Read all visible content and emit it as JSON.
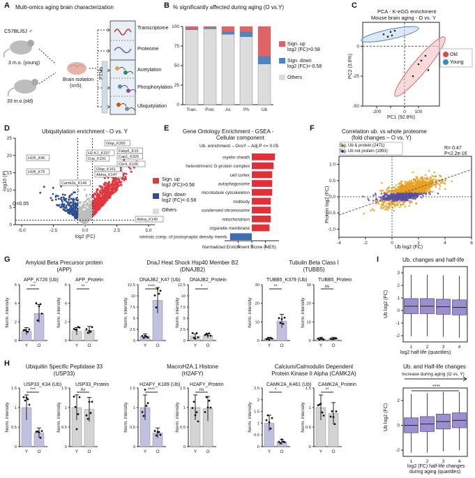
{
  "panels": {
    "A": {
      "label": "A",
      "title": "Multi-omics aging brain characterization",
      "mouse": "C57BL/6J ♂",
      "young": "3 m.o. (young)",
      "old": "33 m.o.(old)",
      "iso1": "Brain isolation",
      "iso2": "(n=5)",
      "ptms": "PTMs",
      "layers": [
        "Transcriptome",
        "Proteome",
        "Acetylation",
        "Phosphorylation",
        "Ubiquitylation"
      ]
    },
    "B": {
      "label": "B",
      "title": "% significantly affected during aging (O vs.Y)",
      "legend": [
        "Sign. up",
        "log2 (FC)>0.58",
        "Sign. down",
        "log2 (FC)<-0.58",
        "Others"
      ]
    },
    "C": {
      "label": "C",
      "title1": "PCA - K-eGG enrichment",
      "title2": "Mouse brain aging - O vs. Y",
      "legend": [
        "Old",
        "Young"
      ]
    },
    "D": {
      "label": "D",
      "title": "Ubiquitylation enrichment - O vs. Y",
      "ylabel": "-log10 (P)",
      "xlabel": "log2 (FC)",
      "qline": "Q=0.05",
      "legend": [
        "Sign. up",
        "log2 (FC)>0.58",
        "Sign. down",
        "log2 (FC)<-0.58",
        "Others"
      ],
      "genes": [
        "H1f5_K46",
        "H1f5_K75",
        "Camk2a_K146",
        "H2-K1_K337",
        "Cnp_K191",
        "Gfap_K161",
        "Aldoa_K147",
        "Gfap_K365",
        "Fabp5_K10",
        "Cap1_K326",
        "Clic4_K106",
        "Aldoa_K140"
      ]
    },
    "E": {
      "label": "E",
      "title1": "Gene Ontology Enrichment - GSEA -",
      "title2": "Cellular component",
      "subtitle": "Ub. enrichment – OvsY – Adj.P <= 0.05",
      "xlabel": "Normalized Enrichment Score (NES)"
    },
    "F": {
      "label": "F",
      "title1": "Correlation ub. vs whole proteome",
      "title2": "(fold changes – O vs. Y)",
      "legend": [
        "Sig. Ub & protein (2471)",
        "Sig. Ub not protein (1993)"
      ],
      "stats": [
        "R= 0.47",
        "P<2.2e-16"
      ],
      "ylabel": "Protein log2 (FC)",
      "xlabel": "Ub log2 (FC)"
    },
    "G": {
      "label": "G",
      "groups": [
        {
          "title1": "Amyloid Beta Precursor protein",
          "title2": "(APP)",
          "sub": [
            "APP_K726 (Ub)",
            "APP_Protein"
          ],
          "sig": [
            "***",
            "**"
          ]
        },
        {
          "title1": "DnaJ Heat Shock Hsp40 Member B2",
          "title2": "(DNAJB2)",
          "sub": [
            "DNAJB2_K47 (Ub)",
            "DNAJB2_Protein"
          ],
          "sig": [
            "****",
            "*"
          ]
        },
        {
          "title1": "Tubulin Beta Class I",
          "title2": "(TUBB5)",
          "sub": [
            "TUBB5_K379 (Ub)",
            "TUBB5_Protein"
          ],
          "sig": [
            "**",
            "ns"
          ]
        }
      ],
      "ylabel": "Norm. intensity"
    },
    "H": {
      "label": "H",
      "groups": [
        {
          "title1": "Ubiquitin Specific Peptidase 33",
          "title2": "(USP33)",
          "sub": [
            "USP33_K34 (Ub)",
            "USP33_Protein"
          ],
          "sig": [
            "***",
            "ns"
          ]
        },
        {
          "title1": "MacroH2A.1 Histone",
          "title2": "(H2AFY)",
          "sub": [
            "H2AFY_K189 (Ub)",
            "H2AFY_Protein"
          ],
          "sig": [
            "****",
            "ns"
          ]
        },
        {
          "title1": "Calcium/Calmodulin Dependent",
          "title2": "Protein Kinase II Alpha (CAMK2A)",
          "sub": [
            "CAMK2A_K461 (Ub)",
            "CAMK2A_Protein"
          ],
          "sig": [
            "*",
            "**"
          ]
        }
      ],
      "ylabel": "Norm. intensity"
    },
    "I": {
      "label": "I",
      "title1": "Ub. changes and half-life",
      "xlabel1": "log2 half-life (quantiles)",
      "ylabel": "Ub log2 (FC)",
      "title2": "Ub. and Half-life changes",
      "arrow": "Increase during aging (O vs. Y)",
      "sig": "****",
      "xlabel2a": "log2 (FC) half-life changes",
      "xlabel2b": "during aging (quantiles)"
    }
  },
  "chart_data": [
    {
      "type": "bar",
      "panel": "B",
      "categories": [
        "Tran.",
        "Prot.",
        "Ac",
        "Ph",
        "Ub"
      ],
      "series": [
        {
          "name": "Others",
          "values": [
            96,
            97,
            90,
            87,
            52
          ]
        },
        {
          "name": "Sign. down",
          "values": [
            1,
            1,
            3,
            6,
            10
          ]
        },
        {
          "name": "Sign. up",
          "values": [
            3,
            2,
            7,
            7,
            38
          ]
        }
      ],
      "ylim": [
        0,
        100
      ],
      "yticks": [
        0,
        25,
        50,
        75,
        100
      ],
      "colors": {
        "Sign. up": "#e06466",
        "Sign. down": "#4a86c5",
        "Others": "#dcdcdc"
      }
    },
    {
      "type": "scatter",
      "panel": "C",
      "xlabel": "PC1 (92.8%)",
      "ylabel": "PC2 (3.6%)",
      "xlim": [
        -300,
        250
      ],
      "ylim": [
        -50,
        20
      ],
      "xticks": [
        -200,
        -100,
        0,
        100,
        200
      ],
      "yticks": [
        0,
        -25,
        -50
      ],
      "series": [
        {
          "name": "Old",
          "color": "#e8434a",
          "x": [
            60,
            100,
            120,
            150,
            170
          ],
          "y": [
            -25,
            -15,
            -12,
            -8,
            -20
          ]
        },
        {
          "name": "Young",
          "color": "#3a87c9",
          "x": [
            -150,
            -120,
            -100,
            -90,
            -70
          ],
          "y": [
            10,
            8,
            12,
            9,
            13
          ]
        }
      ]
    },
    {
      "type": "scatter",
      "panel": "D",
      "xlabel": "log2 (FC)",
      "ylabel": "-log10 (P)",
      "xlim": [
        -5.5,
        5.5
      ],
      "ylim": [
        0,
        25
      ],
      "xticks": [
        -5.0,
        -2.5,
        0.0,
        2.5,
        5.0
      ],
      "yticks": [
        0,
        5,
        10,
        15,
        20,
        25
      ]
    },
    {
      "type": "bar",
      "panel": "E",
      "categories": [
        "myelin sheath",
        "heterotrimeric G-protein complex",
        "cell cortex",
        "autophagosome",
        "microtubule cytoskeleton",
        "midbody",
        "condensed chromosome",
        "mitochondrion",
        "organelle membrane",
        "intrinsic comp. of postsynaptic density memb."
      ],
      "values": [
        1.7,
        1.6,
        1.5,
        1.5,
        1.5,
        1.4,
        1.4,
        1.4,
        1.3,
        -1.6
      ],
      "xlim": [
        -2,
        2
      ],
      "xticks": [
        -1,
        0,
        1
      ]
    },
    {
      "type": "scatter",
      "panel": "F",
      "xlabel": "Ub log2 (FC)",
      "ylabel": "Protein log2 (FC)",
      "xlim": [
        -4,
        6
      ],
      "ylim": [
        -1.25,
        1.25
      ],
      "xticks": [
        -4,
        -2,
        0,
        2,
        4,
        6
      ],
      "yticks": [
        -1.0,
        -0.5,
        0.0,
        0.5,
        1.0
      ]
    },
    {
      "type": "box",
      "panel": "I-top",
      "categories": [
        "1",
        "2",
        "3",
        "4"
      ],
      "ylim": [
        -2.5,
        3.5
      ],
      "yticks": [
        -2,
        -1,
        0,
        1,
        2,
        3
      ],
      "medians": [
        0.35,
        0.35,
        0.3,
        0.25
      ]
    },
    {
      "type": "box",
      "panel": "I-bottom",
      "categories": [
        "1",
        "2",
        "3",
        "4"
      ],
      "ylim": [
        -2.5,
        3
      ],
      "yticks": [
        -2,
        0,
        2
      ],
      "medians": [
        0.0,
        0.1,
        0.3,
        0.4
      ]
    },
    {
      "type": "bar",
      "panel": "G-H",
      "categories": [
        "Y",
        "O"
      ],
      "bars": [
        {
          "id": "APP_Ub",
          "values": [
            1.0,
            2.9
          ],
          "ylim": [
            0,
            6
          ],
          "yticks": [
            0,
            2,
            4,
            6
          ]
        },
        {
          "id": "APP_Prot",
          "values": [
            1.0,
            1.1
          ],
          "ylim": [
            0,
            6
          ],
          "yticks": [
            0,
            2,
            4,
            6
          ]
        },
        {
          "id": "DNAJB2_Ub",
          "values": [
            1.0,
            9.0
          ],
          "ylim": [
            0,
            12.5
          ],
          "yticks": [
            0,
            2.5,
            5.0,
            7.5,
            10.0,
            12.5
          ]
        },
        {
          "id": "DNAJB2_Prot",
          "values": [
            1.0,
            1.1
          ],
          "ylim": [
            0,
            12.5
          ],
          "yticks": [
            0,
            2.5,
            5.0,
            7.5,
            10.0,
            12.5
          ]
        },
        {
          "id": "TUBB5_Ub",
          "values": [
            1.0,
            10.5
          ],
          "ylim": [
            0,
            30
          ],
          "yticks": [
            0,
            10,
            20,
            30
          ]
        },
        {
          "id": "TUBB5_Prot",
          "values": [
            1.0,
            1.0
          ],
          "ylim": [
            0,
            30
          ],
          "yticks": [
            0,
            10,
            20,
            30
          ]
        },
        {
          "id": "USP33_Ub",
          "values": [
            1.0,
            0.35
          ],
          "ylim": [
            0,
            1.5
          ],
          "yticks": [
            0,
            0.5,
            1.0,
            1.5
          ]
        },
        {
          "id": "USP33_Prot",
          "values": [
            1.0,
            0.95
          ],
          "ylim": [
            0,
            1.5
          ],
          "yticks": [
            0,
            0.5,
            1.0,
            1.5
          ]
        },
        {
          "id": "H2AFY_Ub",
          "values": [
            1.0,
            0.35
          ],
          "ylim": [
            0,
            1.5
          ],
          "yticks": [
            0,
            0.5,
            1.0,
            1.5
          ]
        },
        {
          "id": "H2AFY_Prot",
          "values": [
            1.0,
            0.97
          ],
          "ylim": [
            0,
            1.5
          ],
          "yticks": [
            0,
            0.5,
            1.0,
            1.5
          ]
        },
        {
          "id": "CAMK2A_Ub",
          "values": [
            1.0,
            0.2
          ],
          "ylim": [
            0,
            2.5
          ],
          "yticks": [
            0,
            0.5,
            1.0,
            1.5,
            2.0,
            2.5
          ]
        },
        {
          "id": "CAMK2A_Prot",
          "values": [
            1.0,
            0.85
          ],
          "ylim": [
            0,
            1.5
          ],
          "yticks": [
            0,
            0.5,
            1.0,
            1.5
          ]
        }
      ]
    }
  ],
  "colors": {
    "up": "#e0383f",
    "down": "#2b4f92",
    "others": "#bdbdbd",
    "ub_bar": "#c2c0e0",
    "prot_bar": "#d4d4d4",
    "box": "#9b8fcf",
    "orange": "#e8a020",
    "purple": "#5b4ea8"
  }
}
